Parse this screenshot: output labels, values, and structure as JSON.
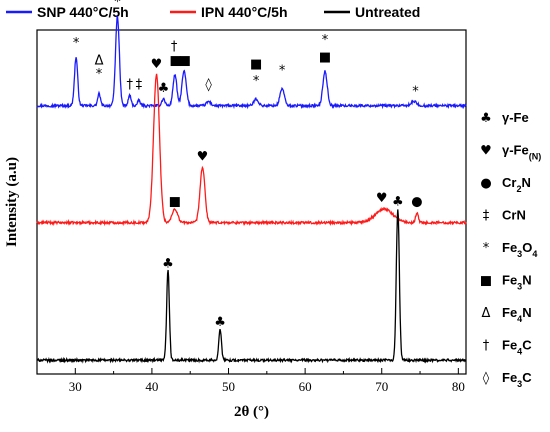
{
  "chart_data": {
    "type": "line",
    "xlabel": "2θ (°)",
    "ylabel": "Intensity (a.u)",
    "xlim": [
      25,
      81
    ],
    "xticks": [
      30,
      40,
      50,
      60,
      70,
      80
    ],
    "y_ticks_shown": false,
    "legend_position": "top",
    "series": [
      {
        "name": "SNP 440°C/5h",
        "color": "#1a1aff",
        "baseline": 0.78,
        "peaks": [
          {
            "x": 30.1,
            "h": 0.14,
            "w": 0.3
          },
          {
            "x": 33.1,
            "h": 0.035,
            "w": 0.25
          },
          {
            "x": 35.5,
            "h": 0.26,
            "w": 0.35
          },
          {
            "x": 37.1,
            "h": 0.03,
            "w": 0.25
          },
          {
            "x": 38.3,
            "h": 0.015,
            "w": 0.25
          },
          {
            "x": 41.5,
            "h": 0.02,
            "w": 0.3
          },
          {
            "x": 43.0,
            "h": 0.09,
            "w": 0.35
          },
          {
            "x": 44.2,
            "h": 0.1,
            "w": 0.4
          },
          {
            "x": 47.4,
            "h": 0.012,
            "w": 0.4
          },
          {
            "x": 53.6,
            "h": 0.02,
            "w": 0.4
          },
          {
            "x": 57.0,
            "h": 0.05,
            "w": 0.4
          },
          {
            "x": 62.6,
            "h": 0.1,
            "w": 0.4
          },
          {
            "x": 74.2,
            "h": 0.012,
            "w": 0.5
          }
        ]
      },
      {
        "name": "IPN 440°C/5h",
        "color": "#ff1a1a",
        "baseline": 0.44,
        "peaks": [
          {
            "x": 40.6,
            "h": 0.43,
            "w": 0.55
          },
          {
            "x": 43.0,
            "h": 0.04,
            "w": 0.5
          },
          {
            "x": 46.6,
            "h": 0.16,
            "w": 0.45
          },
          {
            "x": 70.3,
            "h": 0.04,
            "w": 1.6
          },
          {
            "x": 74.6,
            "h": 0.03,
            "w": 0.25
          }
        ]
      },
      {
        "name": "Untreated",
        "color": "#000000",
        "baseline": 0.04,
        "peaks": [
          {
            "x": 42.1,
            "h": 0.26,
            "w": 0.25
          },
          {
            "x": 48.9,
            "h": 0.09,
            "w": 0.25
          },
          {
            "x": 72.1,
            "h": 0.44,
            "w": 0.28
          }
        ]
      }
    ],
    "peak_markers": [
      {
        "x": 30.1,
        "y": 0.95,
        "symbol": "*"
      },
      {
        "x": 33.1,
        "y": 0.9,
        "symbol": "Δ"
      },
      {
        "x": 33.1,
        "y": 0.86,
        "symbol": "*"
      },
      {
        "x": 35.5,
        "y": 1.07,
        "symbol": "*"
      },
      {
        "x": 37.1,
        "y": 0.83,
        "symbol": "†"
      },
      {
        "x": 38.3,
        "y": 0.83,
        "symbol": "‡"
      },
      {
        "x": 41.5,
        "y": 0.82,
        "symbol": "♣"
      },
      {
        "x": 42.9,
        "y": 0.94,
        "symbol": "†"
      },
      {
        "x": 43.1,
        "y": 0.9,
        "symbol": "■"
      },
      {
        "x": 44.3,
        "y": 0.9,
        "symbol": "■"
      },
      {
        "x": 47.4,
        "y": 0.83,
        "symbol": "◊"
      },
      {
        "x": 53.6,
        "y": 0.89,
        "symbol": "■"
      },
      {
        "x": 53.6,
        "y": 0.84,
        "symbol": "*"
      },
      {
        "x": 57.0,
        "y": 0.87,
        "symbol": "*"
      },
      {
        "x": 62.6,
        "y": 0.96,
        "symbol": "*"
      },
      {
        "x": 62.6,
        "y": 0.91,
        "symbol": "■"
      },
      {
        "x": 74.4,
        "y": 0.81,
        "symbol": "*"
      },
      {
        "x": 40.6,
        "y": 0.89,
        "symbol": "♥"
      },
      {
        "x": 43.0,
        "y": 0.49,
        "symbol": "■"
      },
      {
        "x": 46.6,
        "y": 0.62,
        "symbol": "♥"
      },
      {
        "x": 70.0,
        "y": 0.5,
        "symbol": "♥"
      },
      {
        "x": 74.6,
        "y": 0.49,
        "symbol": "●"
      },
      {
        "x": 42.1,
        "y": 0.31,
        "symbol": "♣"
      },
      {
        "x": 48.9,
        "y": 0.14,
        "symbol": "♣"
      },
      {
        "x": 72.1,
        "y": 0.49,
        "symbol": "♣"
      }
    ],
    "phase_key": [
      {
        "symbol": "♣",
        "label": "γ-Fe",
        "html": "γ-Fe"
      },
      {
        "symbol": "♥",
        "label": "γ-Fe(N)",
        "html": "γ-Fe<tspan baseline-shift=\"sub\" font-size=\"9\">(N)</tspan>"
      },
      {
        "symbol": "●",
        "label": "Cr2N",
        "html": "Cr<tspan baseline-shift=\"sub\" font-size=\"9\">2</tspan>N"
      },
      {
        "symbol": "‡",
        "label": "CrN",
        "html": "CrN"
      },
      {
        "symbol": "*",
        "label": "Fe3O4",
        "html": "Fe<tspan baseline-shift=\"sub\" font-size=\"9\">3</tspan>O<tspan baseline-shift=\"sub\" font-size=\"9\">4</tspan>"
      },
      {
        "symbol": "■",
        "label": "Fe3N",
        "html": "Fe<tspan baseline-shift=\"sub\" font-size=\"9\">3</tspan>N"
      },
      {
        "symbol": "Δ",
        "label": "Fe4N",
        "html": "Fe<tspan baseline-shift=\"sub\" font-size=\"9\">4</tspan>N"
      },
      {
        "symbol": "†",
        "label": "Fe4C",
        "html": "Fe<tspan baseline-shift=\"sub\" font-size=\"9\">4</tspan>C"
      },
      {
        "symbol": "◊",
        "label": "Fe3C",
        "html": "Fe<tspan baseline-shift=\"sub\" font-size=\"9\">3</tspan>C"
      }
    ]
  }
}
